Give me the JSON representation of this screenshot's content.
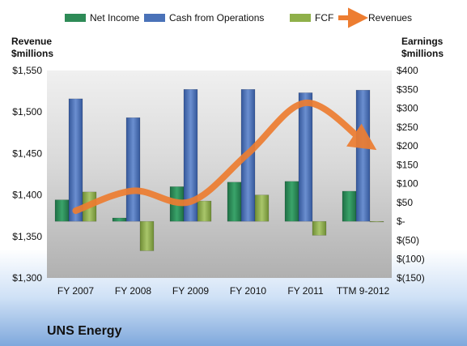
{
  "company_name": "UNS Energy",
  "colors": {
    "net_income": "#2e8b57",
    "cash_from_operations": "#4a72b8",
    "fcf": "#8fb04a",
    "revenues": "#ed7d31"
  },
  "chart_data": {
    "type": "bar",
    "categories": [
      "FY 2007",
      "FY 2008",
      "FY 2009",
      "FY 2010",
      "FY 2011",
      "TTM 9-2012"
    ],
    "left_axis": {
      "title_line1": "Revenue",
      "title_line2": "$millions",
      "ylim": [
        1300,
        1550
      ],
      "ticks": [
        {
          "value": 1550,
          "label": "$1,550"
        },
        {
          "value": 1500,
          "label": "$1,500"
        },
        {
          "value": 1450,
          "label": "$1,450"
        },
        {
          "value": 1400,
          "label": "$1,400"
        },
        {
          "value": 1350,
          "label": "$1,350"
        },
        {
          "value": 1300,
          "label": "$1,300"
        }
      ]
    },
    "right_axis": {
      "title_line1": "Earnings",
      "title_line2": "$millions",
      "ylim": [
        -150,
        400
      ],
      "ticks": [
        {
          "value": 400,
          "label": "$400"
        },
        {
          "value": 350,
          "label": "$350"
        },
        {
          "value": 300,
          "label": "$300"
        },
        {
          "value": 250,
          "label": "$250"
        },
        {
          "value": 200,
          "label": "$200"
        },
        {
          "value": 150,
          "label": "$150"
        },
        {
          "value": 100,
          "label": "$100"
        },
        {
          "value": 50,
          "label": "$50"
        },
        {
          "value": 0,
          "label": "$-"
        },
        {
          "value": -50,
          "label": "$(50)"
        },
        {
          "value": -100,
          "label": "$(100)"
        },
        {
          "value": -150,
          "label": "$(150)"
        }
      ]
    },
    "series": [
      {
        "name": "Net Income",
        "axis": "right",
        "kind": "bar",
        "values": [
          57,
          9,
          92,
          104,
          106,
          80
        ]
      },
      {
        "name": "Cash from Operations",
        "axis": "right",
        "kind": "bar",
        "values": [
          325,
          275,
          350,
          350,
          341,
          348
        ]
      },
      {
        "name": "FCF",
        "axis": "right",
        "kind": "bar",
        "values": [
          78,
          -78,
          54,
          70,
          -37,
          0
        ]
      },
      {
        "name": "Revenues",
        "axis": "left",
        "kind": "line",
        "values": [
          1381,
          1405,
          1392,
          1450,
          1511,
          1465
        ]
      }
    ],
    "legend_position": "top",
    "grid": false
  }
}
